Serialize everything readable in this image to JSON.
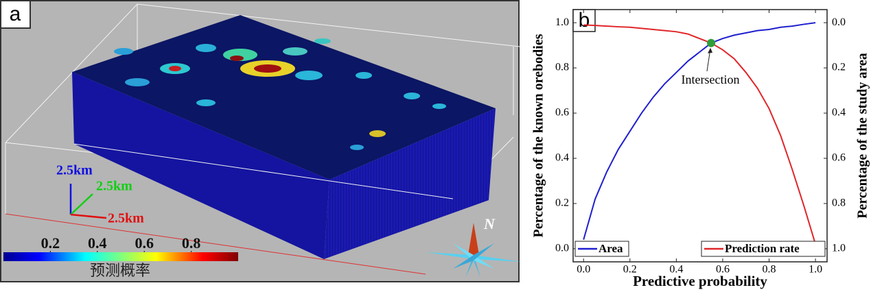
{
  "panel_a": {
    "label": "a",
    "scale_labels": [
      "2.5km",
      "2.5km",
      "2.5km"
    ],
    "north": "N",
    "colorbar": {
      "title": "预测概率",
      "lim": [
        0,
        1
      ],
      "ticks": [
        0.2,
        0.4,
        0.6,
        0.8
      ]
    }
  },
  "chart_data": {
    "type": "line",
    "panel_label": "b",
    "xlabel": "Predictive probability",
    "ylabel": "Percentage of the known orebodies",
    "y2label": "Percentage of the study area",
    "x": [
      0,
      0.05,
      0.1,
      0.15,
      0.2,
      0.25,
      0.3,
      0.35,
      0.4,
      0.45,
      0.5,
      0.55,
      0.6,
      0.65,
      0.7,
      0.75,
      0.8,
      0.85,
      0.9,
      0.95,
      1.0
    ],
    "series": [
      {
        "name": "Area",
        "color": "#1f1fd0",
        "axis": "y2",
        "values": [
          0.96,
          0.78,
          0.66,
          0.56,
          0.48,
          0.4,
          0.33,
          0.27,
          0.22,
          0.17,
          0.13,
          0.09,
          0.07,
          0.055,
          0.045,
          0.035,
          0.03,
          0.02,
          0.015,
          0.007,
          0.0
        ]
      },
      {
        "name": "Prediction rate",
        "color": "#e0262a",
        "values": [
          0.99,
          0.988,
          0.985,
          0.982,
          0.98,
          0.975,
          0.97,
          0.965,
          0.96,
          0.95,
          0.93,
          0.91,
          0.88,
          0.84,
          0.78,
          0.71,
          0.62,
          0.5,
          0.35,
          0.19,
          0.02
        ]
      }
    ],
    "intersection": {
      "x": 0.55,
      "y": 0.91,
      "label": "Intersection",
      "color": "#2f9e3a"
    },
    "xlim": [
      -0.045,
      1.05
    ],
    "xticks": [
      {
        "value": 0,
        "label": "0.0"
      },
      0.2,
      0.4,
      0.6,
      0.8,
      {
        "value": 1,
        "label": "1.0"
      }
    ],
    "ylim": [
      -0.058,
      1.058
    ],
    "yticks": [
      {
        "value": 0,
        "label": "0.0"
      },
      0.2,
      0.4,
      0.6,
      0.8,
      {
        "value": 1,
        "label": "1.0"
      }
    ],
    "y2lim": [
      1.058,
      -0.058
    ],
    "y2ticks": [
      {
        "value": 0,
        "label": "0.0"
      },
      0.2,
      0.4,
      0.6,
      0.8,
      {
        "value": 1,
        "label": "1.0"
      }
    ]
  }
}
